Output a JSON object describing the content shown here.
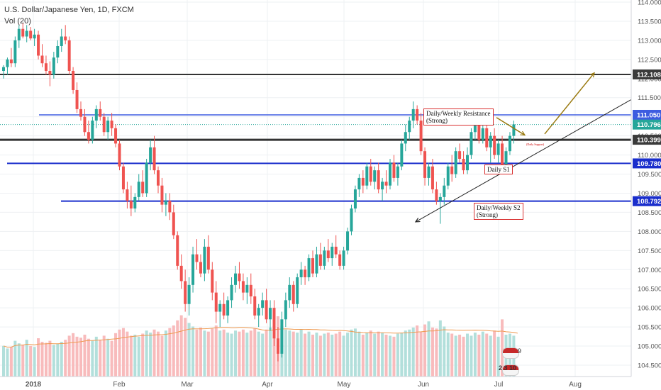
{
  "header": {
    "symbol_title": "U.S. Dollar/Japanese Yen, 1D, FXCM",
    "volume_label": "Vol (20)"
  },
  "colors": {
    "up": "#26a69a",
    "down": "#ef5350",
    "vol_up": "#b2dfdb",
    "vol_down": "#f8bbbc",
    "vol_ma": "#ef9a50",
    "level_black": "#333333",
    "level_blue": "#1a2ecc",
    "level_blue_light": "#3d5ce0",
    "price_tag": "#26a69a",
    "arrow_gold": "#9a7a10",
    "trend": "#222222"
  },
  "chart_data": {
    "type": "candlestick",
    "symbol": "USDJPY",
    "timeframe": "1D",
    "ylim": [
      104.3,
      114.2
    ],
    "y_ticks": [
      "104.500",
      "105.000",
      "105.500",
      "106.000",
      "106.500",
      "107.000",
      "107.500",
      "108.000",
      "108.500",
      "109.000",
      "109.500",
      "110.000",
      "110.500",
      "111.000",
      "111.500",
      "112.000",
      "112.500",
      "113.000",
      "113.500",
      "114.000"
    ],
    "x_ticks": [
      "2018",
      "Feb",
      "Mar",
      "Apr",
      "May",
      "Jun",
      "Jul",
      "Aug"
    ],
    "levels": [
      {
        "price": 112.108,
        "label": "112.108",
        "style": "black",
        "start": 0
      },
      {
        "price": 111.05,
        "label": "111.050",
        "style": "blue_light",
        "start": 55
      },
      {
        "price": 110.399,
        "label": "110.399",
        "style": "black_thick",
        "start": 0
      },
      {
        "price": 109.78,
        "label": "109.780",
        "style": "blue",
        "start": 10
      },
      {
        "price": 108.792,
        "label": "108.792",
        "style": "blue",
        "start": 86
      }
    ],
    "last_price": {
      "price": 110.796,
      "label": "110.796"
    },
    "annotations": {
      "resistance": [
        "Daily/Weekly Resistance",
        "(Strong)"
      ],
      "s1": [
        "Daily S1"
      ],
      "s2": [
        "Daily/Weekly S2",
        "(Strong)"
      ],
      "tiny_note": "(Daily Support)"
    },
    "flag_texts": [
      "9",
      "2 3 10"
    ],
    "candles": [
      {
        "o": 112.2,
        "h": 112.35,
        "l": 112.0,
        "c": 112.3
      },
      {
        "o": 112.3,
        "h": 112.55,
        "l": 112.1,
        "c": 112.5
      },
      {
        "o": 112.5,
        "h": 112.8,
        "l": 112.3,
        "c": 112.4
      },
      {
        "o": 112.4,
        "h": 113.1,
        "l": 112.3,
        "c": 113.0
      },
      {
        "o": 113.0,
        "h": 113.4,
        "l": 112.8,
        "c": 113.3
      },
      {
        "o": 113.3,
        "h": 113.45,
        "l": 113.05,
        "c": 113.1
      },
      {
        "o": 113.1,
        "h": 113.4,
        "l": 112.95,
        "c": 113.25
      },
      {
        "o": 113.25,
        "h": 113.35,
        "l": 113.0,
        "c": 113.05
      },
      {
        "o": 113.05,
        "h": 113.3,
        "l": 112.85,
        "c": 113.15
      },
      {
        "o": 113.15,
        "h": 113.25,
        "l": 112.5,
        "c": 112.6
      },
      {
        "o": 112.6,
        "h": 112.9,
        "l": 112.3,
        "c": 112.4
      },
      {
        "o": 112.4,
        "h": 112.6,
        "l": 112.1,
        "c": 112.2
      },
      {
        "o": 112.2,
        "h": 112.45,
        "l": 111.8,
        "c": 112.1
      },
      {
        "o": 112.1,
        "h": 112.7,
        "l": 112.0,
        "c": 112.55
      },
      {
        "o": 112.55,
        "h": 113.0,
        "l": 112.4,
        "c": 112.85
      },
      {
        "o": 112.85,
        "h": 113.3,
        "l": 112.7,
        "c": 113.1
      },
      {
        "o": 113.1,
        "h": 113.4,
        "l": 112.9,
        "c": 113.0
      },
      {
        "o": 113.0,
        "h": 113.1,
        "l": 112.1,
        "c": 112.2
      },
      {
        "o": 112.2,
        "h": 112.3,
        "l": 111.6,
        "c": 111.7
      },
      {
        "o": 111.7,
        "h": 111.9,
        "l": 111.1,
        "c": 111.2
      },
      {
        "o": 111.2,
        "h": 111.4,
        "l": 110.9,
        "c": 111.0
      },
      {
        "o": 111.0,
        "h": 111.2,
        "l": 110.5,
        "c": 110.6
      },
      {
        "o": 110.6,
        "h": 110.9,
        "l": 110.3,
        "c": 110.4
      },
      {
        "o": 110.4,
        "h": 111.0,
        "l": 110.3,
        "c": 110.9
      },
      {
        "o": 110.9,
        "h": 111.3,
        "l": 110.7,
        "c": 111.2
      },
      {
        "o": 111.2,
        "h": 111.4,
        "l": 110.9,
        "c": 111.0
      },
      {
        "o": 111.0,
        "h": 111.1,
        "l": 110.5,
        "c": 110.6
      },
      {
        "o": 110.6,
        "h": 111.0,
        "l": 110.4,
        "c": 110.9
      },
      {
        "o": 110.9,
        "h": 111.1,
        "l": 110.5,
        "c": 110.7
      },
      {
        "o": 110.7,
        "h": 110.8,
        "l": 110.2,
        "c": 110.3
      },
      {
        "o": 110.3,
        "h": 110.4,
        "l": 109.6,
        "c": 109.7
      },
      {
        "o": 109.7,
        "h": 109.8,
        "l": 109.0,
        "c": 109.1
      },
      {
        "o": 109.1,
        "h": 109.3,
        "l": 108.6,
        "c": 108.8
      },
      {
        "o": 108.8,
        "h": 109.2,
        "l": 108.4,
        "c": 108.6
      },
      {
        "o": 108.6,
        "h": 109.0,
        "l": 108.5,
        "c": 108.9
      },
      {
        "o": 108.9,
        "h": 109.5,
        "l": 108.8,
        "c": 109.3
      },
      {
        "o": 109.3,
        "h": 109.6,
        "l": 108.9,
        "c": 109.0
      },
      {
        "o": 109.0,
        "h": 109.9,
        "l": 108.9,
        "c": 109.8
      },
      {
        "o": 109.8,
        "h": 110.4,
        "l": 109.6,
        "c": 110.2
      },
      {
        "o": 110.2,
        "h": 110.5,
        "l": 109.5,
        "c": 109.6
      },
      {
        "o": 109.6,
        "h": 109.7,
        "l": 109.0,
        "c": 109.2
      },
      {
        "o": 109.2,
        "h": 109.4,
        "l": 108.5,
        "c": 108.7
      },
      {
        "o": 108.7,
        "h": 109.0,
        "l": 108.4,
        "c": 108.8
      },
      {
        "o": 108.8,
        "h": 109.0,
        "l": 108.3,
        "c": 108.5
      },
      {
        "o": 108.5,
        "h": 108.7,
        "l": 107.8,
        "c": 107.9
      },
      {
        "o": 107.9,
        "h": 108.0,
        "l": 107.0,
        "c": 107.1
      },
      {
        "o": 107.1,
        "h": 107.4,
        "l": 106.5,
        "c": 106.7
      },
      {
        "o": 106.7,
        "h": 107.0,
        "l": 105.9,
        "c": 106.1
      },
      {
        "o": 106.1,
        "h": 106.8,
        "l": 105.8,
        "c": 106.6
      },
      {
        "o": 106.6,
        "h": 107.6,
        "l": 106.4,
        "c": 107.4
      },
      {
        "o": 107.4,
        "h": 107.8,
        "l": 107.0,
        "c": 107.2
      },
      {
        "o": 107.2,
        "h": 107.4,
        "l": 106.8,
        "c": 106.9
      },
      {
        "o": 106.9,
        "h": 107.8,
        "l": 106.7,
        "c": 107.6
      },
      {
        "o": 107.6,
        "h": 107.9,
        "l": 106.9,
        "c": 107.0
      },
      {
        "o": 107.0,
        "h": 107.2,
        "l": 106.2,
        "c": 106.4
      },
      {
        "o": 106.4,
        "h": 106.7,
        "l": 105.6,
        "c": 105.9
      },
      {
        "o": 105.9,
        "h": 106.2,
        "l": 105.5,
        "c": 106.1
      },
      {
        "o": 106.1,
        "h": 106.4,
        "l": 105.7,
        "c": 105.8
      },
      {
        "o": 105.8,
        "h": 106.3,
        "l": 105.6,
        "c": 106.2
      },
      {
        "o": 106.2,
        "h": 106.8,
        "l": 106.0,
        "c": 106.6
      },
      {
        "o": 106.6,
        "h": 107.1,
        "l": 106.4,
        "c": 106.9
      },
      {
        "o": 106.9,
        "h": 107.2,
        "l": 106.5,
        "c": 106.7
      },
      {
        "o": 106.7,
        "h": 106.9,
        "l": 106.2,
        "c": 106.4
      },
      {
        "o": 106.4,
        "h": 106.8,
        "l": 106.1,
        "c": 106.6
      },
      {
        "o": 106.6,
        "h": 106.9,
        "l": 106.1,
        "c": 106.3
      },
      {
        "o": 106.3,
        "h": 106.5,
        "l": 105.7,
        "c": 105.8
      },
      {
        "o": 105.8,
        "h": 106.1,
        "l": 105.5,
        "c": 106.0
      },
      {
        "o": 106.0,
        "h": 106.4,
        "l": 105.8,
        "c": 106.2
      },
      {
        "o": 106.2,
        "h": 106.5,
        "l": 105.6,
        "c": 105.7
      },
      {
        "o": 105.7,
        "h": 106.2,
        "l": 105.4,
        "c": 106.0
      },
      {
        "o": 106.0,
        "h": 106.2,
        "l": 105.0,
        "c": 105.2
      },
      {
        "o": 105.2,
        "h": 105.5,
        "l": 104.6,
        "c": 104.8
      },
      {
        "o": 104.8,
        "h": 105.9,
        "l": 104.7,
        "c": 105.7
      },
      {
        "o": 105.7,
        "h": 106.4,
        "l": 105.5,
        "c": 106.2
      },
      {
        "o": 106.2,
        "h": 106.8,
        "l": 106.0,
        "c": 106.6
      },
      {
        "o": 106.6,
        "h": 106.7,
        "l": 105.9,
        "c": 106.1
      },
      {
        "o": 106.1,
        "h": 106.9,
        "l": 106.0,
        "c": 106.8
      },
      {
        "o": 106.8,
        "h": 107.2,
        "l": 106.6,
        "c": 107.0
      },
      {
        "o": 107.0,
        "h": 107.1,
        "l": 106.6,
        "c": 106.8
      },
      {
        "o": 106.8,
        "h": 107.4,
        "l": 106.7,
        "c": 107.3
      },
      {
        "o": 107.3,
        "h": 107.5,
        "l": 106.8,
        "c": 106.9
      },
      {
        "o": 106.9,
        "h": 107.6,
        "l": 106.8,
        "c": 107.4
      },
      {
        "o": 107.4,
        "h": 107.7,
        "l": 107.0,
        "c": 107.1
      },
      {
        "o": 107.1,
        "h": 107.6,
        "l": 107.0,
        "c": 107.5
      },
      {
        "o": 107.5,
        "h": 107.8,
        "l": 107.2,
        "c": 107.3
      },
      {
        "o": 107.3,
        "h": 107.7,
        "l": 107.1,
        "c": 107.6
      },
      {
        "o": 107.6,
        "h": 107.9,
        "l": 107.3,
        "c": 107.4
      },
      {
        "o": 107.4,
        "h": 107.5,
        "l": 107.0,
        "c": 107.1
      },
      {
        "o": 107.1,
        "h": 107.6,
        "l": 107.0,
        "c": 107.5
      },
      {
        "o": 107.5,
        "h": 108.1,
        "l": 107.4,
        "c": 108.0
      },
      {
        "o": 108.0,
        "h": 108.7,
        "l": 107.9,
        "c": 108.6
      },
      {
        "o": 108.6,
        "h": 109.2,
        "l": 108.5,
        "c": 109.1
      },
      {
        "o": 109.1,
        "h": 109.5,
        "l": 108.9,
        "c": 109.4
      },
      {
        "o": 109.4,
        "h": 109.6,
        "l": 109.0,
        "c": 109.2
      },
      {
        "o": 109.2,
        "h": 109.8,
        "l": 109.1,
        "c": 109.7
      },
      {
        "o": 109.7,
        "h": 109.9,
        "l": 109.2,
        "c": 109.3
      },
      {
        "o": 109.3,
        "h": 109.7,
        "l": 109.1,
        "c": 109.6
      },
      {
        "o": 109.6,
        "h": 109.8,
        "l": 109.0,
        "c": 109.1
      },
      {
        "o": 109.1,
        "h": 109.4,
        "l": 108.8,
        "c": 109.3
      },
      {
        "o": 109.3,
        "h": 109.6,
        "l": 109.0,
        "c": 109.2
      },
      {
        "o": 109.2,
        "h": 109.9,
        "l": 109.1,
        "c": 109.8
      },
      {
        "o": 109.8,
        "h": 110.0,
        "l": 109.3,
        "c": 109.4
      },
      {
        "o": 109.4,
        "h": 109.8,
        "l": 109.2,
        "c": 109.7
      },
      {
        "o": 109.7,
        "h": 110.4,
        "l": 109.6,
        "c": 110.3
      },
      {
        "o": 110.3,
        "h": 110.8,
        "l": 110.1,
        "c": 110.6
      },
      {
        "o": 110.6,
        "h": 111.0,
        "l": 110.4,
        "c": 110.9
      },
      {
        "o": 110.9,
        "h": 111.4,
        "l": 110.7,
        "c": 111.2
      },
      {
        "o": 111.2,
        "h": 111.3,
        "l": 110.8,
        "c": 110.9
      },
      {
        "o": 110.9,
        "h": 111.1,
        "l": 110.0,
        "c": 110.1
      },
      {
        "o": 110.1,
        "h": 110.2,
        "l": 109.2,
        "c": 109.4
      },
      {
        "o": 109.4,
        "h": 109.8,
        "l": 109.2,
        "c": 109.7
      },
      {
        "o": 109.7,
        "h": 109.9,
        "l": 109.0,
        "c": 109.1
      },
      {
        "o": 109.1,
        "h": 109.3,
        "l": 108.7,
        "c": 108.8
      },
      {
        "o": 108.8,
        "h": 109.0,
        "l": 108.2,
        "c": 108.9
      },
      {
        "o": 108.9,
        "h": 109.4,
        "l": 108.7,
        "c": 109.2
      },
      {
        "o": 109.2,
        "h": 109.8,
        "l": 109.1,
        "c": 109.7
      },
      {
        "o": 109.7,
        "h": 110.0,
        "l": 109.3,
        "c": 109.5
      },
      {
        "o": 109.5,
        "h": 110.2,
        "l": 109.4,
        "c": 110.1
      },
      {
        "o": 110.1,
        "h": 110.3,
        "l": 109.8,
        "c": 109.9
      },
      {
        "o": 109.9,
        "h": 110.1,
        "l": 109.5,
        "c": 109.6
      },
      {
        "o": 109.6,
        "h": 110.2,
        "l": 109.5,
        "c": 110.0
      },
      {
        "o": 110.0,
        "h": 110.7,
        "l": 109.9,
        "c": 110.6
      },
      {
        "o": 110.6,
        "h": 110.9,
        "l": 110.4,
        "c": 110.8
      },
      {
        "o": 110.8,
        "h": 110.95,
        "l": 110.3,
        "c": 110.4
      },
      {
        "o": 110.4,
        "h": 110.9,
        "l": 110.3,
        "c": 110.7
      },
      {
        "o": 110.7,
        "h": 110.85,
        "l": 110.1,
        "c": 110.2
      },
      {
        "o": 110.2,
        "h": 110.6,
        "l": 109.8,
        "c": 110.5
      },
      {
        "o": 110.5,
        "h": 110.7,
        "l": 109.9,
        "c": 110.0
      },
      {
        "o": 110.0,
        "h": 110.4,
        "l": 109.8,
        "c": 110.3
      },
      {
        "o": 110.3,
        "h": 110.5,
        "l": 109.5,
        "c": 109.6
      },
      {
        "o": 109.6,
        "h": 110.2,
        "l": 109.5,
        "c": 110.1
      },
      {
        "o": 110.1,
        "h": 110.6,
        "l": 110.0,
        "c": 110.5
      },
      {
        "o": 110.5,
        "h": 110.9,
        "l": 110.3,
        "c": 110.8
      }
    ],
    "volume": [
      60,
      55,
      58,
      70,
      65,
      62,
      72,
      60,
      58,
      75,
      68,
      66,
      70,
      62,
      64,
      68,
      72,
      80,
      85,
      78,
      76,
      82,
      74,
      70,
      78,
      72,
      80,
      74,
      70,
      85,
      92,
      95,
      88,
      80,
      82,
      78,
      84,
      90,
      86,
      92,
      88,
      80,
      90,
      95,
      100,
      110,
      120,
      115,
      105,
      98,
      92,
      96,
      90,
      88,
      94,
      100,
      90,
      92,
      86,
      84,
      90,
      88,
      92,
      86,
      90,
      94,
      88,
      84,
      92,
      96,
      110,
      118,
      100,
      92,
      90,
      88,
      86,
      92,
      84,
      88,
      82,
      86,
      80,
      84,
      86,
      82,
      84,
      88,
      80,
      86,
      92,
      94,
      88,
      82,
      86,
      90,
      84,
      88,
      86,
      82,
      80,
      78,
      84,
      86,
      90,
      92,
      96,
      100,
      88,
      102,
      108,
      96,
      94,
      110,
      98,
      86,
      84,
      80,
      82,
      78,
      84,
      80,
      86,
      82,
      88,
      84,
      80,
      90,
      78,
      112,
      82,
      84,
      80,
      78
    ]
  }
}
